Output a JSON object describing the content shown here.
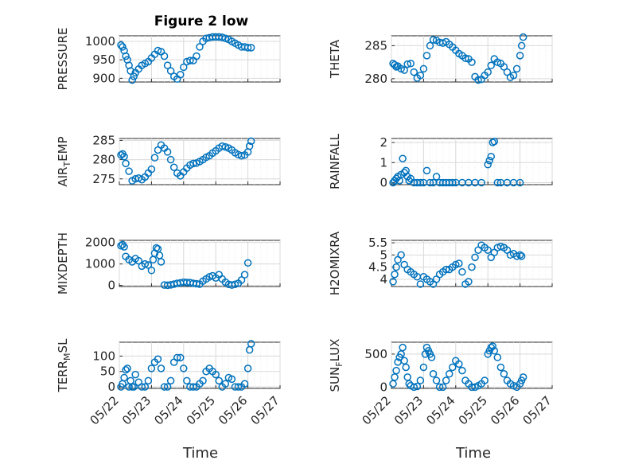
{
  "figure": {
    "title": "Figure 2 low",
    "xlabel": "Time"
  },
  "chart_data": [
    {
      "type": "scatter",
      "id": "pressure",
      "ylabel": "PRESSURE",
      "yticks": [
        "900",
        "950",
        "1000"
      ],
      "ylim": [
        890,
        1015
      ],
      "xticks": [
        "05/22",
        "05/23",
        "05/24",
        "05/25",
        "05/26",
        "05/27"
      ],
      "xlim": [
        0,
        5
      ],
      "show_xticklabels": false,
      "x": [
        0.05,
        0.1,
        0.15,
        0.2,
        0.25,
        0.3,
        0.35,
        0.4,
        0.45,
        0.5,
        0.6,
        0.7,
        0.8,
        0.9,
        1.0,
        1.1,
        1.2,
        1.3,
        1.4,
        1.5,
        1.6,
        1.7,
        1.8,
        1.9,
        2.0,
        2.1,
        2.2,
        2.3,
        2.4,
        2.5,
        2.6,
        2.7,
        2.8,
        2.9,
        3.0,
        3.1,
        3.2,
        3.3,
        3.4,
        3.5,
        3.6,
        3.7,
        3.8,
        3.9,
        4.0,
        4.1
      ],
      "y": [
        990,
        985,
        975,
        960,
        950,
        935,
        920,
        895,
        905,
        915,
        925,
        935,
        940,
        945,
        955,
        965,
        975,
        972,
        960,
        935,
        920,
        905,
        898,
        910,
        930,
        945,
        948,
        948,
        960,
        985,
        1000,
        1008,
        1010,
        1012,
        1012,
        1012,
        1011,
        1008,
        1005,
        1000,
        995,
        990,
        985,
        985,
        983,
        983
      ]
    },
    {
      "type": "scatter",
      "id": "theta",
      "ylabel": "THETA",
      "yticks": [
        "280",
        "285"
      ],
      "ylim": [
        279.5,
        286.5
      ],
      "xticks": [
        "05/22",
        "05/23",
        "05/24",
        "05/25",
        "05/26",
        "05/27"
      ],
      "xlim": [
        0,
        5
      ],
      "show_xticklabels": false,
      "x": [
        0.05,
        0.1,
        0.15,
        0.2,
        0.3,
        0.4,
        0.5,
        0.6,
        0.7,
        0.8,
        0.9,
        1.0,
        1.1,
        1.2,
        1.3,
        1.4,
        1.5,
        1.6,
        1.7,
        1.8,
        1.9,
        2.0,
        2.1,
        2.2,
        2.3,
        2.4,
        2.5,
        2.6,
        2.7,
        2.8,
        2.9,
        3.0,
        3.1,
        3.2,
        3.3,
        3.4,
        3.5,
        3.6,
        3.7,
        3.8,
        3.9,
        4.0,
        4.05,
        4.1
      ],
      "y": [
        282.3,
        282.1,
        281.8,
        281.9,
        281.5,
        281.3,
        282.2,
        282.3,
        281.0,
        280.1,
        280.5,
        281.5,
        283.5,
        285.0,
        285.9,
        285.8,
        285.5,
        285.4,
        285.6,
        285.2,
        284.8,
        284.3,
        283.8,
        283.5,
        283.1,
        283.0,
        282.5,
        280.3,
        279.8,
        279.9,
        280.5,
        281.0,
        282.0,
        283.0,
        282.5,
        282.3,
        281.8,
        281.0,
        280.2,
        280.5,
        281.5,
        283.5,
        285.0,
        286.3
      ]
    },
    {
      "type": "scatter",
      "id": "air_temp",
      "ylabel": "AIR_TEMP",
      "yticks": [
        "275",
        "280",
        "285"
      ],
      "ylim": [
        273.5,
        285.5
      ],
      "xticks": [
        "05/22",
        "05/23",
        "05/24",
        "05/25",
        "05/26",
        "05/27"
      ],
      "xlim": [
        0,
        5
      ],
      "show_xticklabels": false,
      "x": [
        0.05,
        0.1,
        0.15,
        0.2,
        0.3,
        0.4,
        0.5,
        0.6,
        0.7,
        0.8,
        0.9,
        1.0,
        1.1,
        1.2,
        1.3,
        1.4,
        1.5,
        1.6,
        1.7,
        1.8,
        1.9,
        2.0,
        2.1,
        2.2,
        2.3,
        2.4,
        2.5,
        2.6,
        2.7,
        2.8,
        2.9,
        3.0,
        3.1,
        3.2,
        3.3,
        3.4,
        3.5,
        3.6,
        3.7,
        3.8,
        3.9,
        4.0,
        4.05,
        4.1
      ],
      "y": [
        281.2,
        281.5,
        280.8,
        279.0,
        277.0,
        274.5,
        275.0,
        275.2,
        274.8,
        275.5,
        276.5,
        277.5,
        280.5,
        282.5,
        283.8,
        283.0,
        282.0,
        280.0,
        278.0,
        276.5,
        275.8,
        276.8,
        277.8,
        278.6,
        279.0,
        279.1,
        279.5,
        280.0,
        280.6,
        281.0,
        281.7,
        282.3,
        283.0,
        283.5,
        283.3,
        283.0,
        282.5,
        281.8,
        281.3,
        281.0,
        281.2,
        282.0,
        283.5,
        284.8
      ]
    },
    {
      "type": "scatter",
      "id": "rainfall",
      "ylabel": "RAINFALL",
      "yticks": [
        "0",
        "1",
        "2"
      ],
      "ylim": [
        -0.1,
        2.2
      ],
      "xticks": [
        "05/22",
        "05/23",
        "05/24",
        "05/25",
        "05/26",
        "05/27"
      ],
      "xlim": [
        0,
        5
      ],
      "show_xticklabels": false,
      "x": [
        0.05,
        0.1,
        0.15,
        0.2,
        0.25,
        0.3,
        0.35,
        0.4,
        0.45,
        0.5,
        0.55,
        0.6,
        0.7,
        0.8,
        0.9,
        1.0,
        1.1,
        1.2,
        1.3,
        1.4,
        1.5,
        1.6,
        1.7,
        1.8,
        1.9,
        2.0,
        2.2,
        2.4,
        2.6,
        2.8,
        3.0,
        3.05,
        3.1,
        3.15,
        3.2,
        3.3,
        3.4,
        3.6,
        3.8,
        4.0
      ],
      "y": [
        0,
        0.1,
        0.2,
        0.3,
        0.1,
        0.4,
        1.2,
        0.5,
        0.6,
        0.3,
        0.1,
        0.2,
        0,
        0,
        0,
        0,
        0.6,
        0,
        0,
        0.3,
        0,
        0,
        0,
        0,
        0,
        0,
        0,
        0,
        0,
        0,
        0.9,
        1.1,
        1.3,
        2.0,
        2.05,
        0,
        0,
        0,
        0,
        0
      ]
    },
    {
      "type": "scatter",
      "id": "mixdepth",
      "ylabel": "MIXDEPTH",
      "yticks": [
        "0",
        "1000",
        "2000"
      ],
      "ylim": [
        -50,
        2100
      ],
      "xticks": [
        "05/22",
        "05/23",
        "05/24",
        "05/25",
        "05/26",
        "05/27"
      ],
      "xlim": [
        0,
        5
      ],
      "show_xticklabels": false,
      "x": [
        0.05,
        0.1,
        0.15,
        0.2,
        0.3,
        0.4,
        0.5,
        0.6,
        0.7,
        0.8,
        0.9,
        1.0,
        1.05,
        1.1,
        1.15,
        1.2,
        1.25,
        1.3,
        1.4,
        1.5,
        1.6,
        1.7,
        1.8,
        1.9,
        2.0,
        2.1,
        2.2,
        2.3,
        2.4,
        2.5,
        2.6,
        2.7,
        2.8,
        2.9,
        3.0,
        3.1,
        3.2,
        3.3,
        3.4,
        3.5,
        3.6,
        3.7,
        3.8,
        3.9,
        4.0
      ],
      "y": [
        1850,
        1900,
        1800,
        1350,
        1200,
        1100,
        1250,
        1150,
        900,
        1000,
        950,
        700,
        1200,
        1500,
        1750,
        1700,
        1400,
        1100,
        20,
        10,
        30,
        60,
        100,
        120,
        150,
        140,
        130,
        100,
        80,
        60,
        200,
        300,
        400,
        450,
        350,
        500,
        300,
        150,
        50,
        20,
        50,
        100,
        250,
        500,
        1050
      ]
    },
    {
      "type": "scatter",
      "id": "h2omixra",
      "ylabel": "H2OMIXRA",
      "yticks": [
        "4",
        "4.5",
        "5",
        "5.5"
      ],
      "ylim": [
        3.7,
        5.6
      ],
      "xticks": [
        "05/22",
        "05/23",
        "05/24",
        "05/25",
        "05/26",
        "05/27"
      ],
      "xlim": [
        0,
        5
      ],
      "show_xticklabels": false,
      "x": [
        0.05,
        0.1,
        0.15,
        0.2,
        0.3,
        0.4,
        0.5,
        0.6,
        0.7,
        0.8,
        0.9,
        1.0,
        1.1,
        1.2,
        1.3,
        1.4,
        1.5,
        1.6,
        1.7,
        1.8,
        1.9,
        2.0,
        2.1,
        2.2,
        2.3,
        2.4,
        2.5,
        2.6,
        2.7,
        2.8,
        2.9,
        3.0,
        3.1,
        3.2,
        3.3,
        3.4,
        3.5,
        3.6,
        3.7,
        3.8,
        3.9,
        4.0,
        4.05
      ],
      "y": [
        3.9,
        4.2,
        4.5,
        4.8,
        5.0,
        4.6,
        4.4,
        4.3,
        4.2,
        4.1,
        3.8,
        4.1,
        4.0,
        3.9,
        3.8,
        4.0,
        4.2,
        4.3,
        4.4,
        4.4,
        4.5,
        4.6,
        4.65,
        4.3,
        3.8,
        3.9,
        4.5,
        4.9,
        5.2,
        5.4,
        5.3,
        5.2,
        4.9,
        5.1,
        5.3,
        5.35,
        5.3,
        5.2,
        5.0,
        5.05,
        4.95,
        5.0,
        4.95
      ]
    },
    {
      "type": "scatter",
      "id": "terr_msl",
      "ylabel": "TERR_MSL",
      "yticks": [
        "0",
        "50",
        "100"
      ],
      "ylim": [
        -5,
        145
      ],
      "xticks": [
        "05/22",
        "05/23",
        "05/24",
        "05/25",
        "05/26",
        "05/27"
      ],
      "xlim": [
        0,
        5
      ],
      "show_xticklabels": true,
      "x": [
        0.05,
        0.1,
        0.15,
        0.2,
        0.25,
        0.3,
        0.35,
        0.4,
        0.45,
        0.5,
        0.6,
        0.7,
        0.8,
        0.9,
        1.0,
        1.1,
        1.2,
        1.3,
        1.4,
        1.5,
        1.6,
        1.7,
        1.8,
        1.9,
        2.0,
        2.1,
        2.2,
        2.3,
        2.4,
        2.5,
        2.6,
        2.7,
        2.8,
        2.9,
        3.0,
        3.1,
        3.2,
        3.3,
        3.4,
        3.5,
        3.6,
        3.7,
        3.8,
        3.9,
        4.0,
        4.05,
        4.1
      ],
      "y": [
        0,
        10,
        30,
        55,
        60,
        0,
        20,
        0,
        0,
        40,
        15,
        0,
        0,
        20,
        60,
        80,
        90,
        60,
        0,
        0,
        20,
        80,
        95,
        95,
        60,
        20,
        0,
        0,
        0,
        10,
        20,
        50,
        60,
        50,
        40,
        20,
        0,
        10,
        30,
        25,
        0,
        0,
        0,
        10,
        60,
        120,
        140
      ]
    },
    {
      "type": "scatter",
      "id": "sun_flux",
      "ylabel": "SUN_FLUX",
      "yticks": [
        "0",
        "500"
      ],
      "ylim": [
        -20,
        680
      ],
      "xticks": [
        "05/22",
        "05/23",
        "05/24",
        "05/25",
        "05/26",
        "05/27"
      ],
      "xlim": [
        0,
        5
      ],
      "show_xticklabels": true,
      "x": [
        0.05,
        0.1,
        0.15,
        0.2,
        0.25,
        0.3,
        0.35,
        0.4,
        0.45,
        0.5,
        0.55,
        0.6,
        0.7,
        0.8,
        0.9,
        1.0,
        1.05,
        1.1,
        1.15,
        1.2,
        1.25,
        1.3,
        1.4,
        1.5,
        1.6,
        1.7,
        1.8,
        1.9,
        2.0,
        2.1,
        2.2,
        2.3,
        2.4,
        2.5,
        2.6,
        2.7,
        2.8,
        2.9,
        3.0,
        3.05,
        3.1,
        3.15,
        3.2,
        3.3,
        3.4,
        3.5,
        3.6,
        3.7,
        3.8,
        3.9,
        4.0,
        4.05,
        4.1
      ],
      "y": [
        50,
        150,
        250,
        380,
        450,
        500,
        600,
        400,
        300,
        150,
        50,
        20,
        0,
        10,
        100,
        300,
        500,
        600,
        550,
        500,
        450,
        200,
        100,
        0,
        0,
        100,
        200,
        300,
        400,
        350,
        250,
        100,
        50,
        0,
        0,
        20,
        50,
        100,
        500,
        550,
        600,
        620,
        550,
        450,
        300,
        200,
        100,
        50,
        20,
        0,
        50,
        100,
        150
      ]
    }
  ]
}
